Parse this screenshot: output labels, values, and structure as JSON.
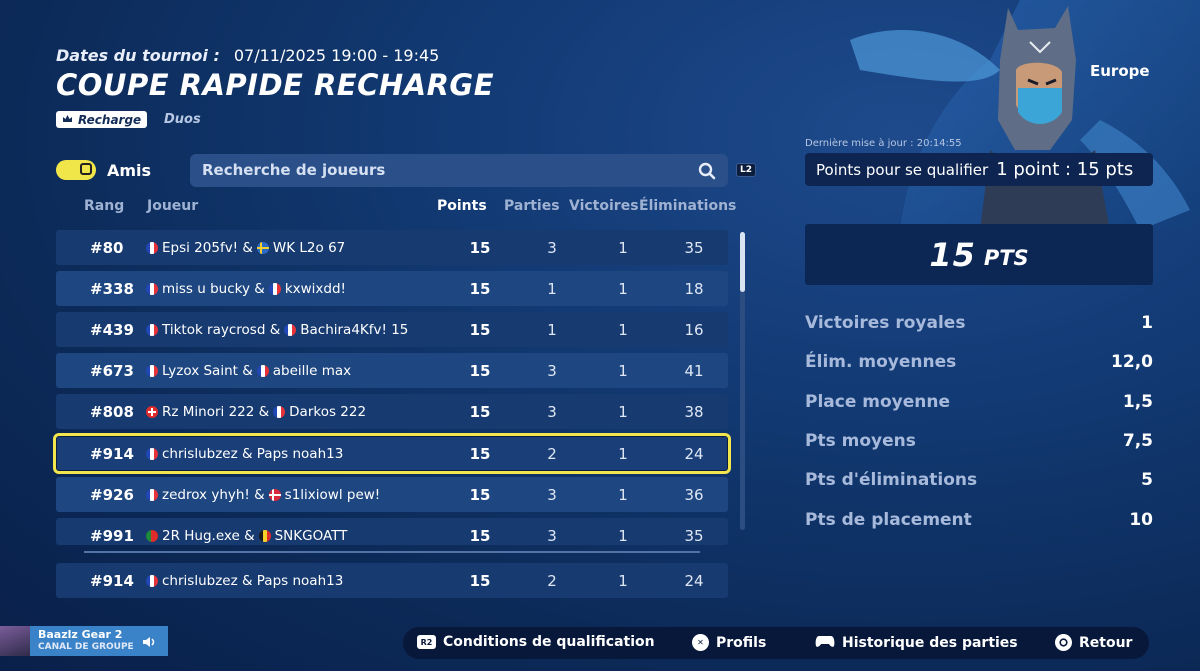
{
  "header": {
    "dates_label": "Dates du tournoi :",
    "dates_value": "07/11/2025 19:00 - 19:45",
    "title": "COUPE RAPIDE RECHARGE",
    "tag": "Recharge",
    "mode": "Duos"
  },
  "filters": {
    "friends_label": "Amis",
    "search_placeholder": "Recherche de joueurs",
    "search_button_hint": "L2"
  },
  "table": {
    "headers": [
      "Rang",
      "Joueur",
      "Points",
      "Parties",
      "Victoires",
      "Éliminations"
    ],
    "rows": [
      {
        "rank": "#80",
        "p1": "Epsi 205fv! &",
        "f1": "fr",
        "p2": "WK L2o 67",
        "f2": "se",
        "points": "15",
        "games": "3",
        "wins": "1",
        "elims": "35"
      },
      {
        "rank": "#338",
        "p1": "miss u bucky &",
        "f1": "fr",
        "p2": "kxwixdd!",
        "f2": "fr",
        "points": "15",
        "games": "1",
        "wins": "1",
        "elims": "18"
      },
      {
        "rank": "#439",
        "p1": "Tiktok raycrosd &",
        "f1": "fr",
        "p2": "Bachira4Kfv! 15",
        "f2": "fr",
        "points": "15",
        "games": "1",
        "wins": "1",
        "elims": "16"
      },
      {
        "rank": "#673",
        "p1": "Lyzox Saint &",
        "f1": "fr",
        "p2": "abeille max",
        "f2": "fr",
        "points": "15",
        "games": "3",
        "wins": "1",
        "elims": "41"
      },
      {
        "rank": "#808",
        "p1": "Rz Minori 222 &",
        "f1": "ch",
        "p2": "Darkos 222",
        "f2": "fr",
        "points": "15",
        "games": "3",
        "wins": "1",
        "elims": "38"
      },
      {
        "rank": "#914",
        "p1": "chrislubzez & Paps noah13",
        "f1": "fr",
        "p2": "",
        "f2": "",
        "points": "15",
        "games": "2",
        "wins": "1",
        "elims": "24"
      },
      {
        "rank": "#926",
        "p1": "zedrox yhyh! &",
        "f1": "fr",
        "p2": "s1lixiowl pew!",
        "f2": "dk",
        "points": "15",
        "games": "3",
        "wins": "1",
        "elims": "36"
      },
      {
        "rank": "#991",
        "p1": "2R Hug.exe &",
        "f1": "pt",
        "p2": "SNKGOATT",
        "f2": "be",
        "points": "15",
        "games": "3",
        "wins": "1",
        "elims": "35"
      }
    ],
    "self_row": {
      "rank": "#914",
      "player": "chrislubzez & Paps noah13",
      "points": "15",
      "games": "2",
      "wins": "1",
      "elims": "24"
    }
  },
  "panel": {
    "region": "Europe",
    "last_update": "Dernière mise à jour : 20:14:55",
    "qualify_label": "Points pour se qualifier",
    "qualify_value": "1 point : 15 pts",
    "score_value": "15",
    "score_unit": "PTS",
    "stats": [
      {
        "label": "Victoires royales",
        "value": "1"
      },
      {
        "label": "Élim. moyennes",
        "value": "12,0"
      },
      {
        "label": "Place moyenne",
        "value": "1,5"
      },
      {
        "label": "Pts moyens",
        "value": "7,5"
      },
      {
        "label": "Pts d'éliminations",
        "value": "5"
      },
      {
        "label": "Pts de placement",
        "value": "10"
      }
    ]
  },
  "party": {
    "name": "Baazlz Gear 2",
    "channel": "CANAL DE GROUPE"
  },
  "bottom": {
    "qual_hint": "R2",
    "qual": "Conditions de qualification",
    "profiles": "Profils",
    "history": "Historique des parties",
    "back": "Retour"
  },
  "colors": {
    "accent_yellow": "#f2e64e",
    "background": "#123a74"
  }
}
